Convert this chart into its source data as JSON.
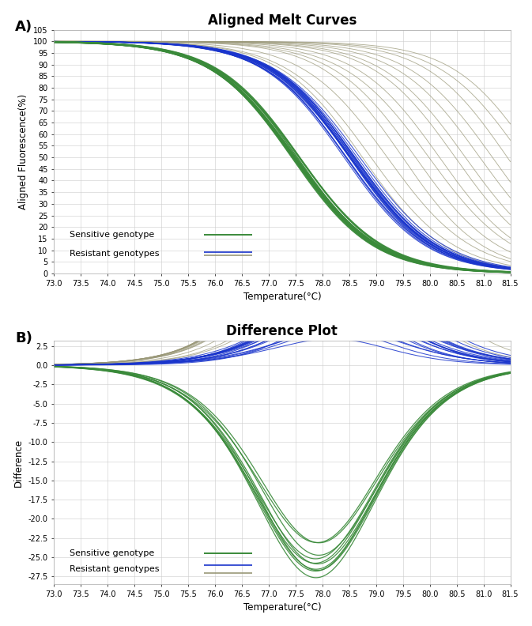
{
  "title_A": "Aligned Melt Curves",
  "title_B": "Difference Plot",
  "xlabel": "Temperature(°C)",
  "ylabel_A": "Aligned Fluorescence(%)",
  "ylabel_B": "Difference",
  "label_A": "A)",
  "label_B": "B)",
  "xmin": 73.0,
  "xmax": 81.5,
  "xticks": [
    73.0,
    73.5,
    74.0,
    74.5,
    75.0,
    75.5,
    76.0,
    76.5,
    77.0,
    77.5,
    78.0,
    78.5,
    79.0,
    79.5,
    80.0,
    80.5,
    81.0,
    81.5
  ],
  "yticks_A": [
    0,
    5,
    10,
    15,
    20,
    25,
    30,
    35,
    40,
    45,
    50,
    55,
    60,
    65,
    70,
    75,
    80,
    85,
    90,
    95,
    100,
    105
  ],
  "ylim_A": [
    0,
    105
  ],
  "yticks_B": [
    2.5,
    0.0,
    -2.5,
    -5.0,
    -7.5,
    -10.0,
    -12.5,
    -15.0,
    -17.5,
    -20.0,
    -22.5,
    -25.0,
    -27.5
  ],
  "ylim_B": [
    -28.5,
    3.2
  ],
  "sensitive_color": "#3a8a3a",
  "resistant_blue_color": "#1a35cc",
  "resistant_gray_color": "#9a9878",
  "bg_color": "#ffffff",
  "grid_color": "#cccccc",
  "n_sensitive": 10,
  "n_resistant_blue": 20,
  "n_resistant_gray": 14,
  "sensitive_tm_base": 77.5,
  "resistant_blue_tm_base": 78.55,
  "resistant_gray_tm_base": 78.7,
  "ref_tm": 78.3,
  "steepness_base": 1.3
}
